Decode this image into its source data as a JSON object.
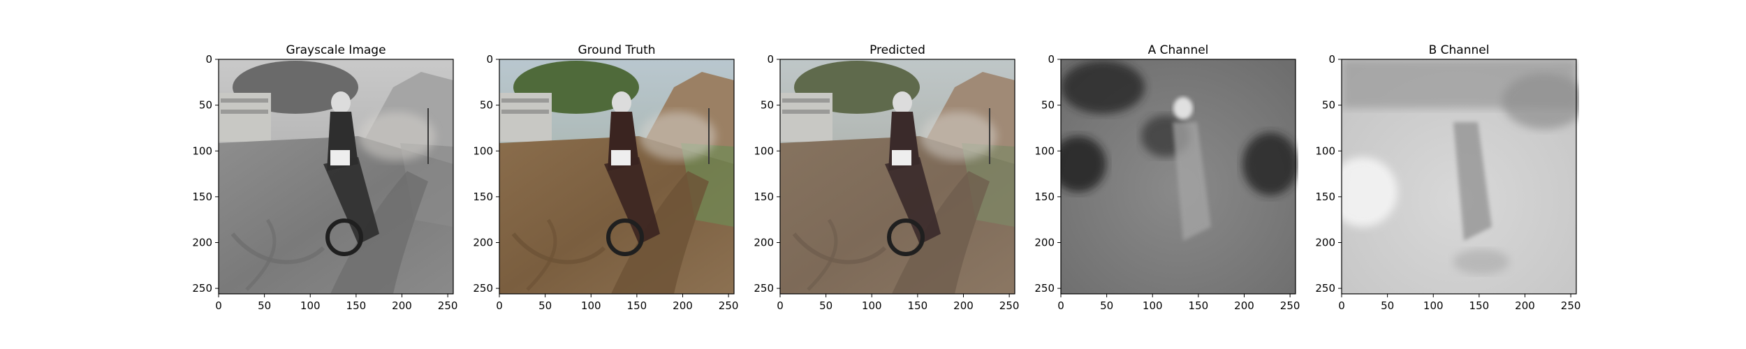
{
  "chart_data": [
    {
      "type": "image",
      "title": "Grayscale Image",
      "image_type": "grayscale",
      "xticks": [
        0,
        50,
        100,
        150,
        200,
        250
      ],
      "yticks": [
        0,
        50,
        100,
        150,
        200,
        250
      ],
      "xlim": [
        0,
        256
      ],
      "ylim": [
        256,
        0
      ],
      "grid": false
    },
    {
      "type": "image",
      "title": "Ground Truth",
      "image_type": "color",
      "xticks": [
        0,
        50,
        100,
        150,
        200,
        250
      ],
      "yticks": [
        0,
        50,
        100,
        150,
        200,
        250
      ],
      "xlim": [
        0,
        256
      ],
      "ylim": [
        256,
        0
      ],
      "grid": false
    },
    {
      "type": "image",
      "title": "Predicted",
      "image_type": "color",
      "xticks": [
        0,
        50,
        100,
        150,
        200,
        250
      ],
      "yticks": [
        0,
        50,
        100,
        150,
        200,
        250
      ],
      "xlim": [
        0,
        256
      ],
      "ylim": [
        256,
        0
      ],
      "grid": false
    },
    {
      "type": "image",
      "title": "A Channel",
      "image_type": "grayscale",
      "xticks": [
        0,
        50,
        100,
        150,
        200,
        250
      ],
      "yticks": [
        0,
        50,
        100,
        150,
        200,
        250
      ],
      "xlim": [
        0,
        256
      ],
      "ylim": [
        256,
        0
      ],
      "grid": false
    },
    {
      "type": "image",
      "title": "B Channel",
      "image_type": "grayscale",
      "xticks": [
        0,
        50,
        100,
        150,
        200,
        250
      ],
      "yticks": [
        0,
        50,
        100,
        150,
        200,
        250
      ],
      "xlim": [
        0,
        256
      ],
      "ylim": [
        256,
        0
      ],
      "grid": false
    }
  ]
}
